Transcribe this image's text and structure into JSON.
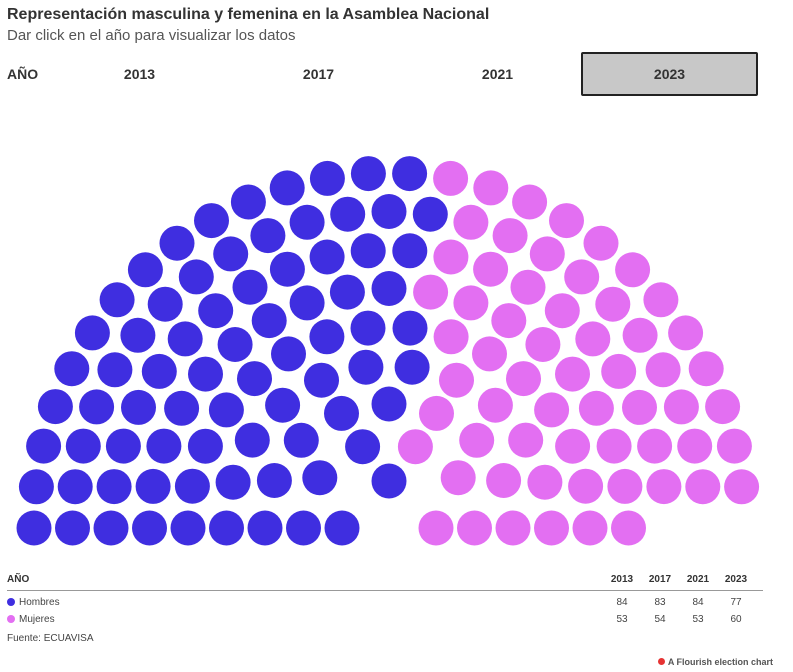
{
  "title": "Representación masculina y femenina en la Asamblea Nacional",
  "subtitle": "Dar click en el año para visualizar los datos",
  "controls": {
    "label": "AÑO",
    "years": [
      "2013",
      "2017",
      "2021",
      "2023"
    ],
    "selected": "2023"
  },
  "chart_data": {
    "type": "parliament",
    "selected_year": "2023",
    "years": [
      "2013",
      "2017",
      "2021",
      "2023"
    ],
    "parties": [
      {
        "name": "Hombres",
        "color": "#3f2ee0",
        "seats": [
          84,
          83,
          84,
          77
        ]
      },
      {
        "name": "Mujeres",
        "color": "#e36ff2",
        "seats": [
          53,
          54,
          53,
          60
        ]
      }
    ],
    "rows": 11
  },
  "legend": {
    "header": "AÑO",
    "rows": [
      {
        "label": "Hombres",
        "values": [
          "84",
          "83",
          "84",
          "77"
        ]
      },
      {
        "label": "Mujeres",
        "values": [
          "53",
          "54",
          "53",
          "60"
        ]
      }
    ]
  },
  "source": "Fuente: ECUAVISA",
  "credit": "A Flourish election chart"
}
